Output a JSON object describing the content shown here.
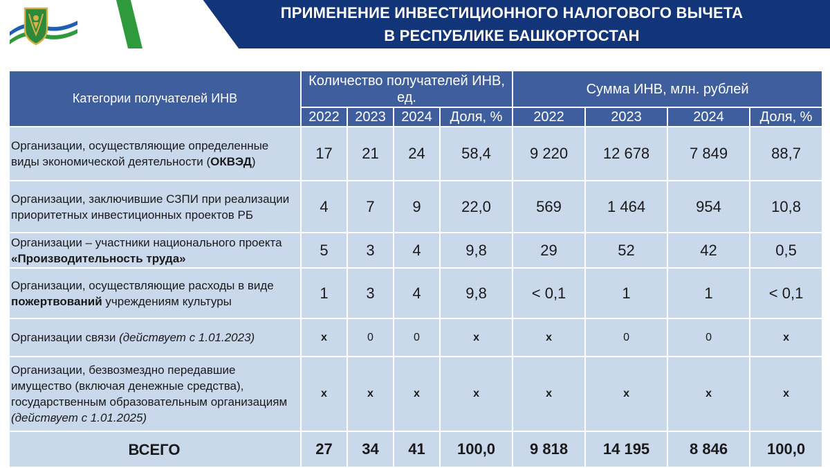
{
  "header": {
    "title_line1": "ПРИМЕНЕНИЕ ИНВЕСТИЦИОННОГО НАЛОГОВОГО ВЫЧЕТА",
    "title_line2": "В РЕСПУБЛИКЕ БАШКОРТОСТАН",
    "colors": {
      "banner": "#12357a",
      "accent": "#2e9a3c"
    }
  },
  "table": {
    "category_header": "Категории получателей ИНВ",
    "group_count": "Количество получателей ИНВ, ед.",
    "group_sum": "Сумма ИНВ, млн. рублей",
    "sub_headers": [
      "2022",
      "2023",
      "2024",
      "Доля, %",
      "2022",
      "2023",
      "2024",
      "Доля, %"
    ],
    "rows": [
      {
        "label_parts": [
          "Организации, осуществляющие определенные виды экономической деятельности (",
          "ОКВЭД",
          ")"
        ],
        "values": [
          "17",
          "21",
          "24",
          "58,4",
          "9 220",
          "12 678",
          "7 849",
          "88,7"
        ]
      },
      {
        "label_parts": [
          "Организации, заключившие СЗПИ при реализации приоритетных инвестиционных проектов РБ"
        ],
        "values": [
          "4",
          "7",
          "9",
          "22,0",
          "569",
          "1 464",
          "954",
          "10,8"
        ]
      },
      {
        "label_parts": [
          "Организации – участники национального проекта ",
          "«Производительность труда»"
        ],
        "values": [
          "5",
          "3",
          "4",
          "9,8",
          "29",
          "52",
          "42",
          "0,5"
        ]
      },
      {
        "label_parts": [
          "Организации, осуществляющие расходы в виде ",
          "пожертвований",
          " учреждениям культуры"
        ],
        "values": [
          "1",
          "3",
          "4",
          "9,8",
          "< 0,1",
          "1",
          "1",
          "< 0,1"
        ]
      },
      {
        "label_parts": [
          "Организации связи ",
          "(действует с 1.01.2023)"
        ],
        "values": [
          "x",
          "0",
          "0",
          "x",
          "x",
          "0",
          "0",
          "x"
        ]
      },
      {
        "label_parts": [
          "Организации, безвозмездно передавшие имущество (включая денежные средства), государственным образовательным организациям ",
          "(действует с 1.01.2025)"
        ],
        "values": [
          "x",
          "x",
          "x",
          "x",
          "x",
          "x",
          "x",
          "x"
        ]
      }
    ],
    "total": {
      "label": "ВСЕГО",
      "values": [
        "27",
        "34",
        "41",
        "100,0",
        "9 818",
        "14 195",
        "8 846",
        "100,0"
      ]
    },
    "colors": {
      "header_bg": "#3f5e9e",
      "cell_bg": "#c9d8eb"
    }
  }
}
